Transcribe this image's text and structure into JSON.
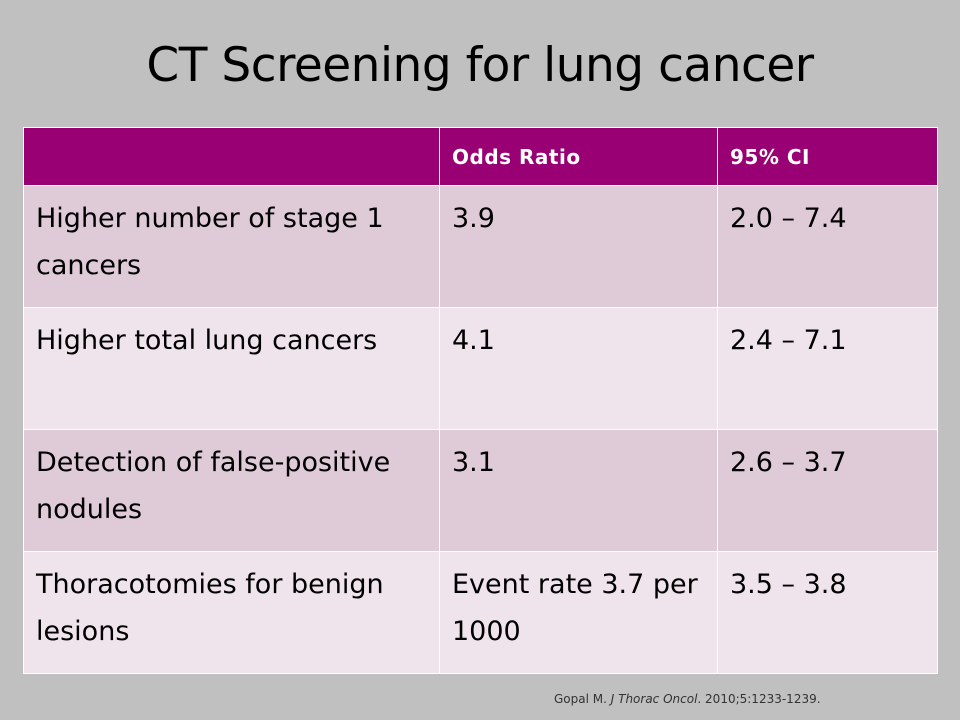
{
  "slide": {
    "title": "CT Screening for lung cancer"
  },
  "table": {
    "headers": [
      "",
      "Odds Ratio",
      "95% CI"
    ],
    "rows": [
      [
        "Higher number of stage 1 cancers",
        "3.9",
        "2.0 – 7.4"
      ],
      [
        "Higher total lung cancers",
        "4.1",
        "2.4 – 7.1"
      ],
      [
        "Detection of false-positive nodules",
        "3.1",
        "2.6 – 3.7"
      ],
      [
        "Thoracotomies for benign lesions",
        "Event rate 3.7 per 1000",
        "3.5 – 3.8"
      ]
    ]
  },
  "citation": {
    "author": "Gopal M.",
    "journal": "J Thorac Oncol",
    "details": ". 2010;5:1233-1239."
  },
  "colors": {
    "background": "#c0c0c0",
    "header": "#990073",
    "row_odd": "#dfcad8",
    "row_even": "#efe4eb"
  }
}
